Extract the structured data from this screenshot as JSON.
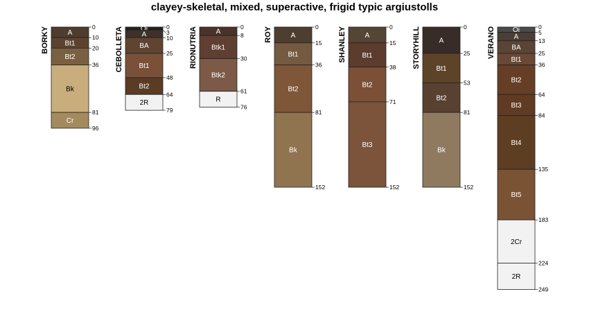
{
  "title": "clayey-skeletal, mixed, superactive, frigid typic argiustolls",
  "chart_data": {
    "type": "soil-profile-sketch",
    "title": "clayey-skeletal, mixed, superactive, frigid typic argiustolls",
    "depth_units": "cm",
    "profiles": [
      {
        "name": "BORKY",
        "horizons": [
          {
            "name": "A",
            "top": 0,
            "bottom": 10,
            "color": "#4e3c2e"
          },
          {
            "name": "Bt1",
            "top": 10,
            "bottom": 20,
            "color": "#5c4330"
          },
          {
            "name": "Bt2",
            "top": 20,
            "bottom": 36,
            "color": "#7a6042"
          },
          {
            "name": "Bk",
            "top": 36,
            "bottom": 81,
            "color": "#c9ad7d"
          },
          {
            "name": "Cr",
            "top": 81,
            "bottom": 96,
            "color": "#a38b5f"
          }
        ]
      },
      {
        "name": "CEBOLLETA",
        "horizons": [
          {
            "name": "Oi",
            "top": 0,
            "bottom": 3,
            "color": "#222222"
          },
          {
            "name": "A",
            "top": 3,
            "bottom": 10,
            "color": "#3f3127"
          },
          {
            "name": "BA",
            "top": 10,
            "bottom": 25,
            "color": "#5f4431"
          },
          {
            "name": "Bt1",
            "top": 25,
            "bottom": 48,
            "color": "#7a5138"
          },
          {
            "name": "Bt2",
            "top": 48,
            "bottom": 64,
            "color": "#5a3b24"
          },
          {
            "name": "2R",
            "top": 64,
            "bottom": 79,
            "color": "#f2f2f2"
          }
        ]
      },
      {
        "name": "RIONUTRIA",
        "horizons": [
          {
            "name": "A",
            "top": 0,
            "bottom": 8,
            "color": "#4a3328"
          },
          {
            "name": "Btk1",
            "top": 8,
            "bottom": 30,
            "color": "#5e3f31"
          },
          {
            "name": "Btk2",
            "top": 30,
            "bottom": 61,
            "color": "#7c5a47"
          },
          {
            "name": "R",
            "top": 61,
            "bottom": 76,
            "color": "#f2f2f2"
          }
        ]
      },
      {
        "name": "ROY",
        "horizons": [
          {
            "name": "A",
            "top": 0,
            "bottom": 15,
            "color": "#4e3e30"
          },
          {
            "name": "Bt1",
            "top": 15,
            "bottom": 36,
            "color": "#735a41"
          },
          {
            "name": "Bt2",
            "top": 36,
            "bottom": 81,
            "color": "#7e5638"
          },
          {
            "name": "Bk",
            "top": 81,
            "bottom": 152,
            "color": "#90734f"
          }
        ]
      },
      {
        "name": "SHANLEY",
        "horizons": [
          {
            "name": "A",
            "top": 0,
            "bottom": 15,
            "color": "#544535"
          },
          {
            "name": "Bt1",
            "top": 15,
            "bottom": 38,
            "color": "#5c3c2d"
          },
          {
            "name": "Bt2",
            "top": 38,
            "bottom": 71,
            "color": "#7b5037"
          },
          {
            "name": "Bt3",
            "top": 71,
            "bottom": 152,
            "color": "#7c533b"
          }
        ]
      },
      {
        "name": "STORYHILL",
        "horizons": [
          {
            "name": "A",
            "top": 0,
            "bottom": 25,
            "color": "#372c27"
          },
          {
            "name": "Bt1",
            "top": 25,
            "bottom": 53,
            "color": "#5d4429"
          },
          {
            "name": "Bt2",
            "top": 53,
            "bottom": 81,
            "color": "#584131"
          },
          {
            "name": "Bk",
            "top": 81,
            "bottom": 152,
            "color": "#8f7a60"
          }
        ]
      },
      {
        "name": "VERANO",
        "horizons": [
          {
            "name": "Oi",
            "top": 0,
            "bottom": 5,
            "color": "#4a4a4a"
          },
          {
            "name": "A",
            "top": 5,
            "bottom": 13,
            "color": "#4a3e36"
          },
          {
            "name": "BA",
            "top": 13,
            "bottom": 25,
            "color": "#5a4435"
          },
          {
            "name": "Bt1",
            "top": 25,
            "bottom": 36,
            "color": "#6a4837"
          },
          {
            "name": "Bt2",
            "top": 36,
            "bottom": 64,
            "color": "#663e26"
          },
          {
            "name": "Bt3",
            "top": 64,
            "bottom": 84,
            "color": "#613a24"
          },
          {
            "name": "Bt4",
            "top": 84,
            "bottom": 135,
            "color": "#5e3e23"
          },
          {
            "name": "Bt5",
            "top": 135,
            "bottom": 183,
            "color": "#7a5335"
          },
          {
            "name": "2Cr",
            "top": 183,
            "bottom": 224,
            "color": "#f2f2f2"
          },
          {
            "name": "2R",
            "top": 224,
            "bottom": 249,
            "color": "#f2f2f2"
          }
        ]
      }
    ]
  }
}
